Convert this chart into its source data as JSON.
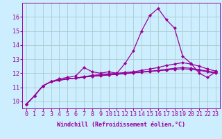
{
  "background_color": "#cceeff",
  "grid_color": "#aacccc",
  "line_color": "#990099",
  "marker": "D",
  "markersize": 2.0,
  "linewidth": 0.9,
  "xlabel": "Windchill (Refroidissement éolien,°C)",
  "xlabel_fontsize": 6.0,
  "tick_fontsize": 6.0,
  "ylim": [
    9.5,
    17.0
  ],
  "xlim": [
    -0.5,
    23.5
  ],
  "yticks": [
    10,
    11,
    12,
    13,
    14,
    15,
    16
  ],
  "xticks": [
    0,
    1,
    2,
    3,
    4,
    5,
    6,
    7,
    8,
    9,
    10,
    11,
    12,
    13,
    14,
    15,
    16,
    17,
    18,
    19,
    20,
    21,
    22,
    23
  ],
  "series": [
    [
      9.8,
      10.4,
      11.1,
      11.4,
      11.6,
      11.7,
      11.8,
      12.4,
      12.1,
      12.0,
      12.1,
      12.0,
      12.7,
      13.6,
      15.0,
      16.1,
      16.6,
      15.8,
      15.2,
      13.2,
      12.7,
      12.0,
      11.7,
      12.1
    ],
    [
      9.8,
      10.4,
      11.1,
      11.4,
      11.5,
      11.6,
      11.65,
      11.75,
      11.85,
      11.9,
      11.95,
      12.0,
      12.05,
      12.1,
      12.2,
      12.3,
      12.4,
      12.55,
      12.65,
      12.75,
      12.65,
      12.5,
      12.3,
      12.15
    ],
    [
      9.8,
      10.4,
      11.1,
      11.4,
      11.5,
      11.6,
      11.65,
      11.72,
      11.78,
      11.82,
      11.87,
      11.92,
      11.97,
      12.02,
      12.07,
      12.12,
      12.17,
      12.22,
      12.27,
      12.32,
      12.27,
      12.2,
      12.1,
      12.0
    ],
    [
      9.8,
      10.4,
      11.1,
      11.4,
      11.5,
      11.6,
      11.65,
      11.74,
      11.8,
      11.85,
      11.9,
      11.95,
      12.0,
      12.05,
      12.1,
      12.15,
      12.2,
      12.28,
      12.35,
      12.4,
      12.35,
      12.25,
      12.15,
      12.05
    ]
  ]
}
